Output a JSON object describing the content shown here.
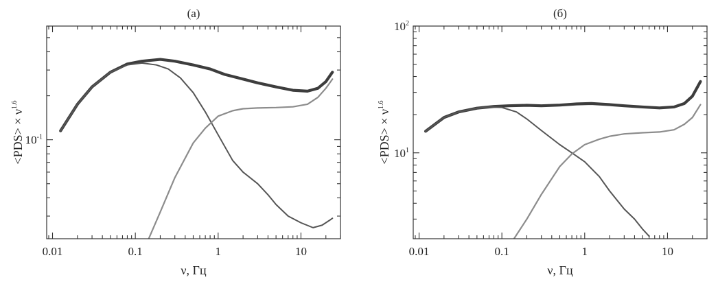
{
  "chart_data": [
    {
      "type": "line",
      "title": "(а)",
      "xlabel": "ν, Гц",
      "ylabel_main": "<PDS> × ν",
      "ylabel_sup": "1.6",
      "x_scale": "log",
      "y_scale": "log",
      "xlim": [
        0.0085,
        30
      ],
      "ylim": [
        0.021,
        0.6
      ],
      "x_ticks": [
        0.01,
        0.1,
        1,
        10
      ],
      "x_tick_labels": [
        "0.01",
        "0.1",
        "1",
        "10"
      ],
      "y_ticks": [
        {
          "value": 0.1,
          "base": "10",
          "exp": "-1"
        }
      ],
      "grid": false,
      "series": [
        {
          "style": "thick-dark",
          "x": [
            0.0125,
            0.02,
            0.03,
            0.05,
            0.08,
            0.12,
            0.2,
            0.3,
            0.5,
            0.8,
            1.2,
            2,
            3,
            5,
            8,
            12,
            16,
            20,
            24
          ],
          "y": [
            0.115,
            0.175,
            0.23,
            0.29,
            0.33,
            0.345,
            0.355,
            0.345,
            0.325,
            0.305,
            0.28,
            0.26,
            0.245,
            0.23,
            0.218,
            0.215,
            0.225,
            0.25,
            0.29
          ]
        },
        {
          "style": "medium-dark",
          "x": [
            0.0125,
            0.02,
            0.03,
            0.05,
            0.08,
            0.12,
            0.18,
            0.25,
            0.35,
            0.5,
            0.7,
            1,
            1.5,
            2,
            3,
            4,
            5,
            7,
            10,
            14,
            18,
            22,
            24
          ],
          "y": [
            0.115,
            0.175,
            0.23,
            0.29,
            0.325,
            0.335,
            0.325,
            0.305,
            0.265,
            0.21,
            0.155,
            0.108,
            0.072,
            0.06,
            0.05,
            0.042,
            0.036,
            0.03,
            0.027,
            0.025,
            0.026,
            0.028,
            0.029
          ]
        },
        {
          "style": "light",
          "x": [
            0.145,
            0.2,
            0.3,
            0.5,
            0.7,
            1,
            1.5,
            2,
            3,
            5,
            8,
            12,
            16,
            20,
            24
          ],
          "y": [
            0.021,
            0.032,
            0.055,
            0.095,
            0.12,
            0.145,
            0.158,
            0.163,
            0.165,
            0.166,
            0.168,
            0.175,
            0.195,
            0.225,
            0.26
          ]
        }
      ]
    },
    {
      "type": "line",
      "title": "(б)",
      "xlabel": "ν, Гц",
      "ylabel_main": "<PDS> × ν",
      "ylabel_sup": "1.6",
      "x_scale": "log",
      "y_scale": "log",
      "xlim": [
        0.0085,
        30
      ],
      "ylim": [
        2.1,
        100
      ],
      "x_ticks": [
        0.01,
        0.1,
        1,
        10
      ],
      "x_tick_labels": [
        "0.01",
        "0.1",
        "1",
        "10"
      ],
      "y_ticks": [
        {
          "value": 10,
          "base": "10",
          "exp": "1"
        },
        {
          "value": 100,
          "base": "10",
          "exp": "2"
        }
      ],
      "grid": false,
      "series": [
        {
          "style": "thick-dark",
          "x": [
            0.012,
            0.02,
            0.03,
            0.05,
            0.08,
            0.12,
            0.2,
            0.3,
            0.5,
            0.8,
            1.2,
            2,
            3,
            5,
            8,
            12,
            16,
            20,
            25
          ],
          "y": [
            14.8,
            19.0,
            21.0,
            22.5,
            23.2,
            23.5,
            23.7,
            23.5,
            23.8,
            24.3,
            24.5,
            24.0,
            23.5,
            23.0,
            22.6,
            23.0,
            24.5,
            28.0,
            36.5
          ]
        },
        {
          "style": "medium-dark",
          "x": [
            0.012,
            0.02,
            0.03,
            0.05,
            0.07,
            0.1,
            0.15,
            0.2,
            0.3,
            0.5,
            0.7,
            1,
            1.5,
            2,
            3,
            4,
            5,
            6
          ],
          "y": [
            14.8,
            19.0,
            21.0,
            22.5,
            23.0,
            22.8,
            21.0,
            18.5,
            15.0,
            11.6,
            10.0,
            8.5,
            6.5,
            5.0,
            3.6,
            3.0,
            2.5,
            2.2
          ]
        },
        {
          "style": "light",
          "x": [
            0.14,
            0.2,
            0.3,
            0.5,
            0.7,
            1,
            1.5,
            2,
            3,
            5,
            8,
            12,
            16,
            20,
            25
          ],
          "y": [
            2.1,
            3.0,
            4.7,
            7.8,
            9.8,
            11.6,
            12.8,
            13.5,
            14.1,
            14.4,
            14.6,
            15.2,
            16.8,
            19.0,
            24.0
          ]
        }
      ]
    }
  ]
}
